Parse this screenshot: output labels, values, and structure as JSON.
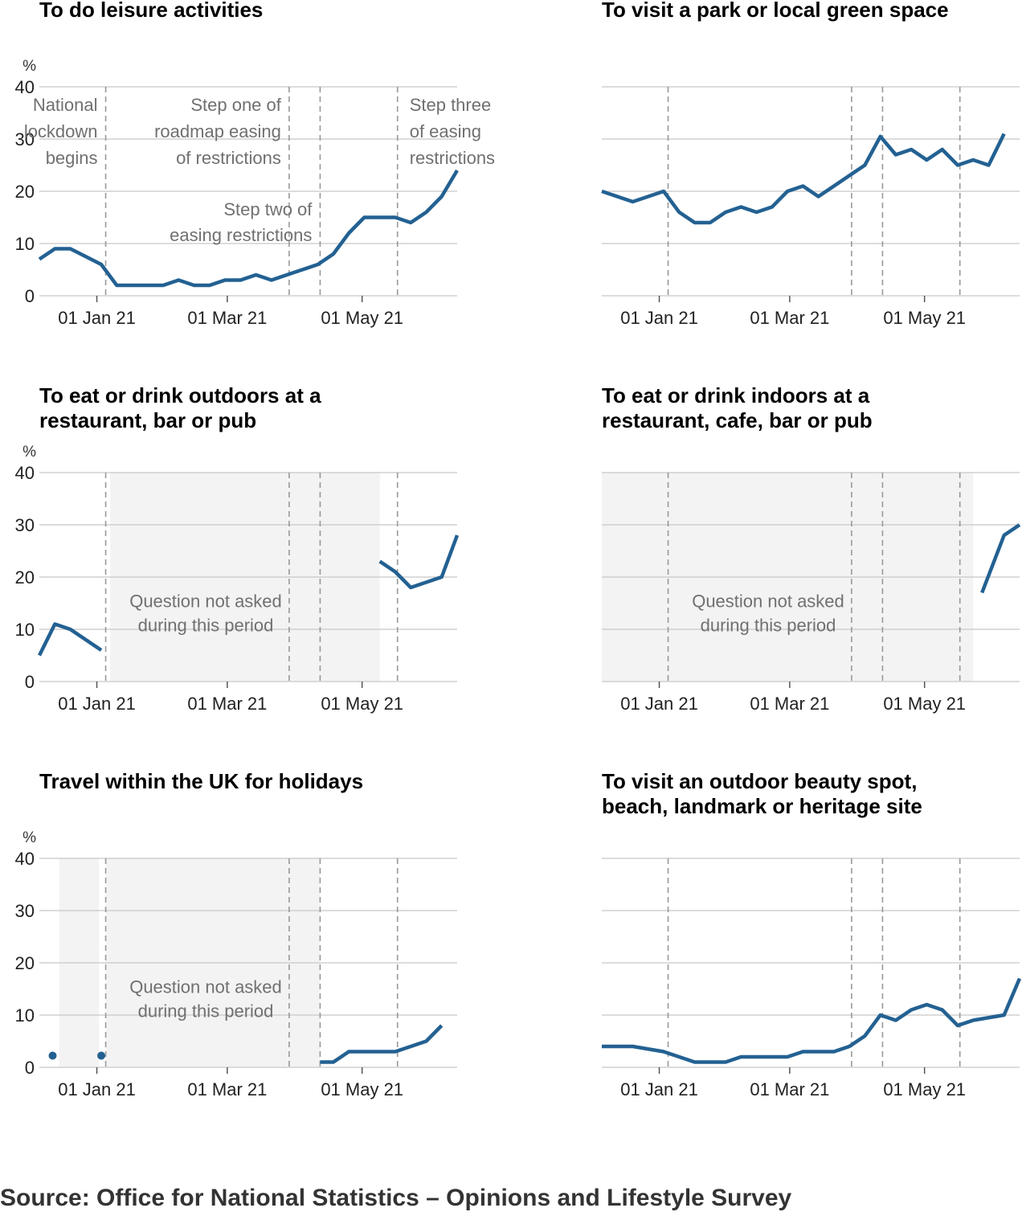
{
  "style": {
    "line_color": "#236192",
    "grid_color": "#d0d0d0",
    "shade_color": "#f3f3f3",
    "ref_line_color": "#999999",
    "annotation_color": "#707070"
  },
  "x_tick_labels": [
    "01 Jan 21",
    "01 Mar 21",
    "01 May 21"
  ],
  "x_tick_dates": [
    "2021-01-01",
    "2021-03-01",
    "2021-05-01"
  ],
  "x_range": [
    "2020-12-06",
    "2021-06-13"
  ],
  "reference_dates": [
    "2021-01-05",
    "2021-03-29",
    "2021-04-12",
    "2021-05-17"
  ],
  "reference_labels": [
    "National\nlockdown\nbegins",
    "Step one of\nroadmap easing\nof restrictions",
    "Step two of\neasing restrictions",
    "Step three\nof easing\nrestrictions"
  ],
  "unit_label": "%",
  "shaded_label": "Question not asked\nduring this period",
  "source": "Source: Office for National Statistics – Opinions and Lifestyle Survey",
  "chart_data": [
    {
      "type": "line",
      "title": "To do leisure activities",
      "ylabel": "%",
      "ylim": [
        0,
        40
      ],
      "y_ticks": [
        0,
        10,
        20,
        30,
        40
      ],
      "show_y_ticks": true,
      "annotations": true,
      "series": [
        {
          "segments": [
            [
              [
                "2020-12-06",
                7
              ],
              [
                "2020-12-13",
                9
              ],
              [
                "2020-12-20",
                9
              ],
              [
                "2020-12-27",
                7.5
              ],
              [
                "2021-01-03",
                6
              ],
              [
                "2021-01-10",
                2
              ],
              [
                "2021-01-24",
                2
              ],
              [
                "2021-01-31",
                2
              ],
              [
                "2021-02-07",
                3
              ],
              [
                "2021-02-14",
                2
              ],
              [
                "2021-02-21",
                2
              ],
              [
                "2021-02-28",
                3
              ],
              [
                "2021-03-07",
                3
              ],
              [
                "2021-03-14",
                4
              ],
              [
                "2021-03-21",
                3
              ],
              [
                "2021-03-28",
                4
              ],
              [
                "2021-04-04",
                5
              ],
              [
                "2021-04-11",
                6
              ],
              [
                "2021-04-18",
                8
              ],
              [
                "2021-04-25",
                12
              ],
              [
                "2021-05-02",
                15
              ],
              [
                "2021-05-16",
                15
              ],
              [
                "2021-05-23",
                14
              ],
              [
                "2021-05-30",
                16
              ],
              [
                "2021-06-06",
                19
              ],
              [
                "2021-06-13",
                24
              ]
            ]
          ]
        }
      ],
      "shaded": []
    },
    {
      "type": "line",
      "title": "To visit a park or local green space",
      "ylim": [
        0,
        40
      ],
      "y_ticks": [
        0,
        10,
        20,
        30,
        40
      ],
      "show_y_ticks": false,
      "series": [
        {
          "segments": [
            [
              [
                "2020-12-06",
                20
              ],
              [
                "2020-12-20",
                18
              ],
              [
                "2021-01-03",
                20
              ],
              [
                "2021-01-10",
                16
              ],
              [
                "2021-01-17",
                14
              ],
              [
                "2021-01-24",
                14
              ],
              [
                "2021-01-31",
                16
              ],
              [
                "2021-02-07",
                17
              ],
              [
                "2021-02-14",
                16
              ],
              [
                "2021-02-21",
                17
              ],
              [
                "2021-02-28",
                20
              ],
              [
                "2021-03-07",
                21
              ],
              [
                "2021-03-14",
                19
              ],
              [
                "2021-03-21",
                21
              ],
              [
                "2021-03-28",
                23
              ],
              [
                "2021-04-04",
                25
              ],
              [
                "2021-04-11",
                30.5
              ],
              [
                "2021-04-18",
                27
              ],
              [
                "2021-04-25",
                28
              ],
              [
                "2021-05-02",
                26
              ],
              [
                "2021-05-09",
                28
              ],
              [
                "2021-05-16",
                25
              ],
              [
                "2021-05-23",
                26
              ],
              [
                "2021-05-30",
                25
              ],
              [
                "2021-06-06",
                31
              ]
            ]
          ]
        }
      ],
      "shaded": []
    },
    {
      "type": "line",
      "title": "To eat or drink outdoors at a\nrestaurant, bar or pub",
      "ylabel": "%",
      "ylim": [
        0,
        40
      ],
      "y_ticks": [
        0,
        10,
        20,
        30,
        40
      ],
      "show_y_ticks": true,
      "shaded_label_show": true,
      "series": [
        {
          "segments": [
            [
              [
                "2020-12-06",
                5
              ],
              [
                "2020-12-13",
                11
              ],
              [
                "2020-12-20",
                10
              ],
              [
                "2020-12-27",
                8
              ],
              [
                "2021-01-03",
                6
              ]
            ],
            [
              [
                "2021-05-09",
                23
              ],
              [
                "2021-05-16",
                21
              ],
              [
                "2021-05-23",
                18
              ],
              [
                "2021-06-06",
                20
              ],
              [
                "2021-06-13",
                28
              ]
            ]
          ]
        }
      ],
      "shaded": [
        [
          "2021-01-07",
          "2021-05-09"
        ]
      ]
    },
    {
      "type": "line",
      "title": "To eat or drink indoors at a\nrestaurant, cafe, bar or pub",
      "ylim": [
        0,
        40
      ],
      "y_ticks": [
        0,
        10,
        20,
        30,
        40
      ],
      "show_y_ticks": false,
      "shaded_label_show": true,
      "series": [
        {
          "segments": [
            [
              [
                "2021-05-27",
                17
              ],
              [
                "2021-06-06",
                28
              ],
              [
                "2021-06-13",
                30
              ]
            ]
          ]
        }
      ],
      "shaded": [
        [
          "2020-12-06",
          "2021-05-23"
        ]
      ]
    },
    {
      "type": "line",
      "title": "Travel within the UK for holidays",
      "ylabel": "%",
      "ylim": [
        0,
        40
      ],
      "y_ticks": [
        0,
        10,
        20,
        30,
        40
      ],
      "show_y_ticks": true,
      "shaded_label_show": true,
      "series": [
        {
          "points": [
            [
              "2020-12-12",
              1
            ],
            [
              "2021-01-03",
              1
            ]
          ],
          "segments": [
            [
              [
                "2021-04-12",
                1
              ],
              [
                "2021-04-18",
                1
              ],
              [
                "2021-04-25",
                3
              ],
              [
                "2021-05-16",
                3
              ],
              [
                "2021-05-30",
                5
              ],
              [
                "2021-06-06",
                8
              ]
            ]
          ]
        }
      ],
      "shaded": [
        [
          "2020-12-15",
          "2021-01-02"
        ],
        [
          "2021-01-05",
          "2021-04-12"
        ]
      ]
    },
    {
      "type": "line",
      "title": "To visit an outdoor beauty spot,\nbeach, landmark or heritage site",
      "ylim": [
        0,
        40
      ],
      "y_ticks": [
        0,
        10,
        20,
        30,
        40
      ],
      "show_y_ticks": false,
      "series": [
        {
          "segments": [
            [
              [
                "2020-12-06",
                4
              ],
              [
                "2020-12-20",
                4
              ],
              [
                "2021-01-03",
                3
              ],
              [
                "2021-01-17",
                1
              ],
              [
                "2021-01-31",
                1
              ],
              [
                "2021-02-07",
                2
              ],
              [
                "2021-02-28",
                2
              ],
              [
                "2021-03-07",
                3
              ],
              [
                "2021-03-21",
                3
              ],
              [
                "2021-03-28",
                4
              ],
              [
                "2021-04-04",
                6
              ],
              [
                "2021-04-11",
                10
              ],
              [
                "2021-04-18",
                9
              ],
              [
                "2021-04-25",
                11
              ],
              [
                "2021-05-02",
                12
              ],
              [
                "2021-05-09",
                11
              ],
              [
                "2021-05-16",
                8
              ],
              [
                "2021-05-23",
                9
              ],
              [
                "2021-06-06",
                10
              ],
              [
                "2021-06-13",
                17
              ]
            ]
          ]
        }
      ],
      "shaded": []
    }
  ]
}
